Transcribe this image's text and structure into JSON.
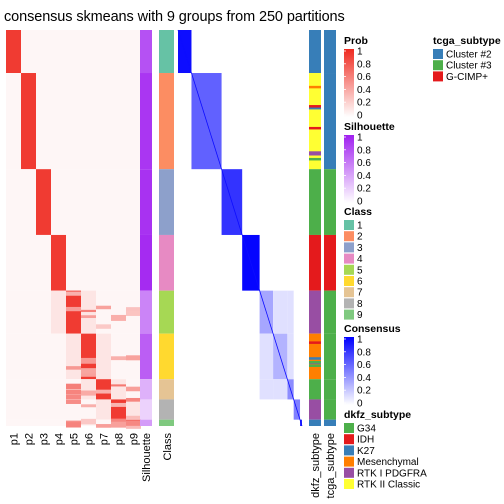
{
  "title": "consensus skmeans with 9 groups from 250 partitions",
  "chart_data": {
    "type": "heatmap",
    "k": 9,
    "partitions": 250,
    "groups": [
      {
        "class": 1,
        "size": 34
      },
      {
        "class": 2,
        "size": 76
      },
      {
        "class": 3,
        "size": 52
      },
      {
        "class": 4,
        "size": 44
      },
      {
        "class": 5,
        "size": 34
      },
      {
        "class": 6,
        "size": 36
      },
      {
        "class": 7,
        "size": 16
      },
      {
        "class": 8,
        "size": 16
      },
      {
        "class": 9,
        "size": 5
      }
    ],
    "prob_columns": [
      "p1",
      "p2",
      "p3",
      "p4",
      "p5",
      "p6",
      "p7",
      "p8",
      "p9"
    ],
    "annotation_columns": [
      "Silhouette",
      "Class"
    ],
    "right_annotation_columns": [
      "dkfz_subtype",
      "tcga_subtype"
    ],
    "legends": [
      {
        "title": "Prob",
        "type": "continuous",
        "ticks": [
          "1",
          "0.8",
          "0.6",
          "0.4",
          "0.2",
          "0"
        ],
        "low": "#ffffff",
        "high": "#ef2a20"
      },
      {
        "title": "Silhouette",
        "type": "continuous",
        "ticks": [
          "1",
          "0.8",
          "0.6",
          "0.4",
          "0.2",
          "0"
        ],
        "low": "#ffffff",
        "high": "#a020f0"
      },
      {
        "title": "Class",
        "type": "discrete",
        "items": [
          {
            "label": "1",
            "color": "#66c2a5"
          },
          {
            "label": "2",
            "color": "#fc8d62"
          },
          {
            "label": "3",
            "color": "#8da0cb"
          },
          {
            "label": "4",
            "color": "#e78ac3"
          },
          {
            "label": "5",
            "color": "#a6d854"
          },
          {
            "label": "6",
            "color": "#ffd92f"
          },
          {
            "label": "7",
            "color": "#e5c494"
          },
          {
            "label": "8",
            "color": "#b3b3b3"
          },
          {
            "label": "9",
            "color": "#7fc97f"
          }
        ]
      },
      {
        "title": "Consensus",
        "type": "continuous",
        "ticks": [
          "1",
          "0.8",
          "0.6",
          "0.4",
          "0.2",
          "0"
        ],
        "low": "#ffffff",
        "high": "#0000ff"
      },
      {
        "title": "dkfz_subtype",
        "type": "discrete",
        "items": [
          {
            "label": "G34",
            "color": "#4daf4a"
          },
          {
            "label": "IDH",
            "color": "#e41a1c"
          },
          {
            "label": "K27",
            "color": "#377eb8"
          },
          {
            "label": "Mesenchymal",
            "color": "#ff7f00"
          },
          {
            "label": "RTK I PDGFRA",
            "color": "#984ea3"
          },
          {
            "label": "RTK II Classic",
            "color": "#ffff33"
          }
        ]
      },
      {
        "title": "tcga_subtype",
        "type": "discrete",
        "items": [
          {
            "label": "Cluster #2",
            "color": "#377eb8"
          },
          {
            "label": "Cluster #3",
            "color": "#4daf4a"
          },
          {
            "label": "G-CIMP+",
            "color": "#e41a1c"
          }
        ]
      }
    ]
  }
}
